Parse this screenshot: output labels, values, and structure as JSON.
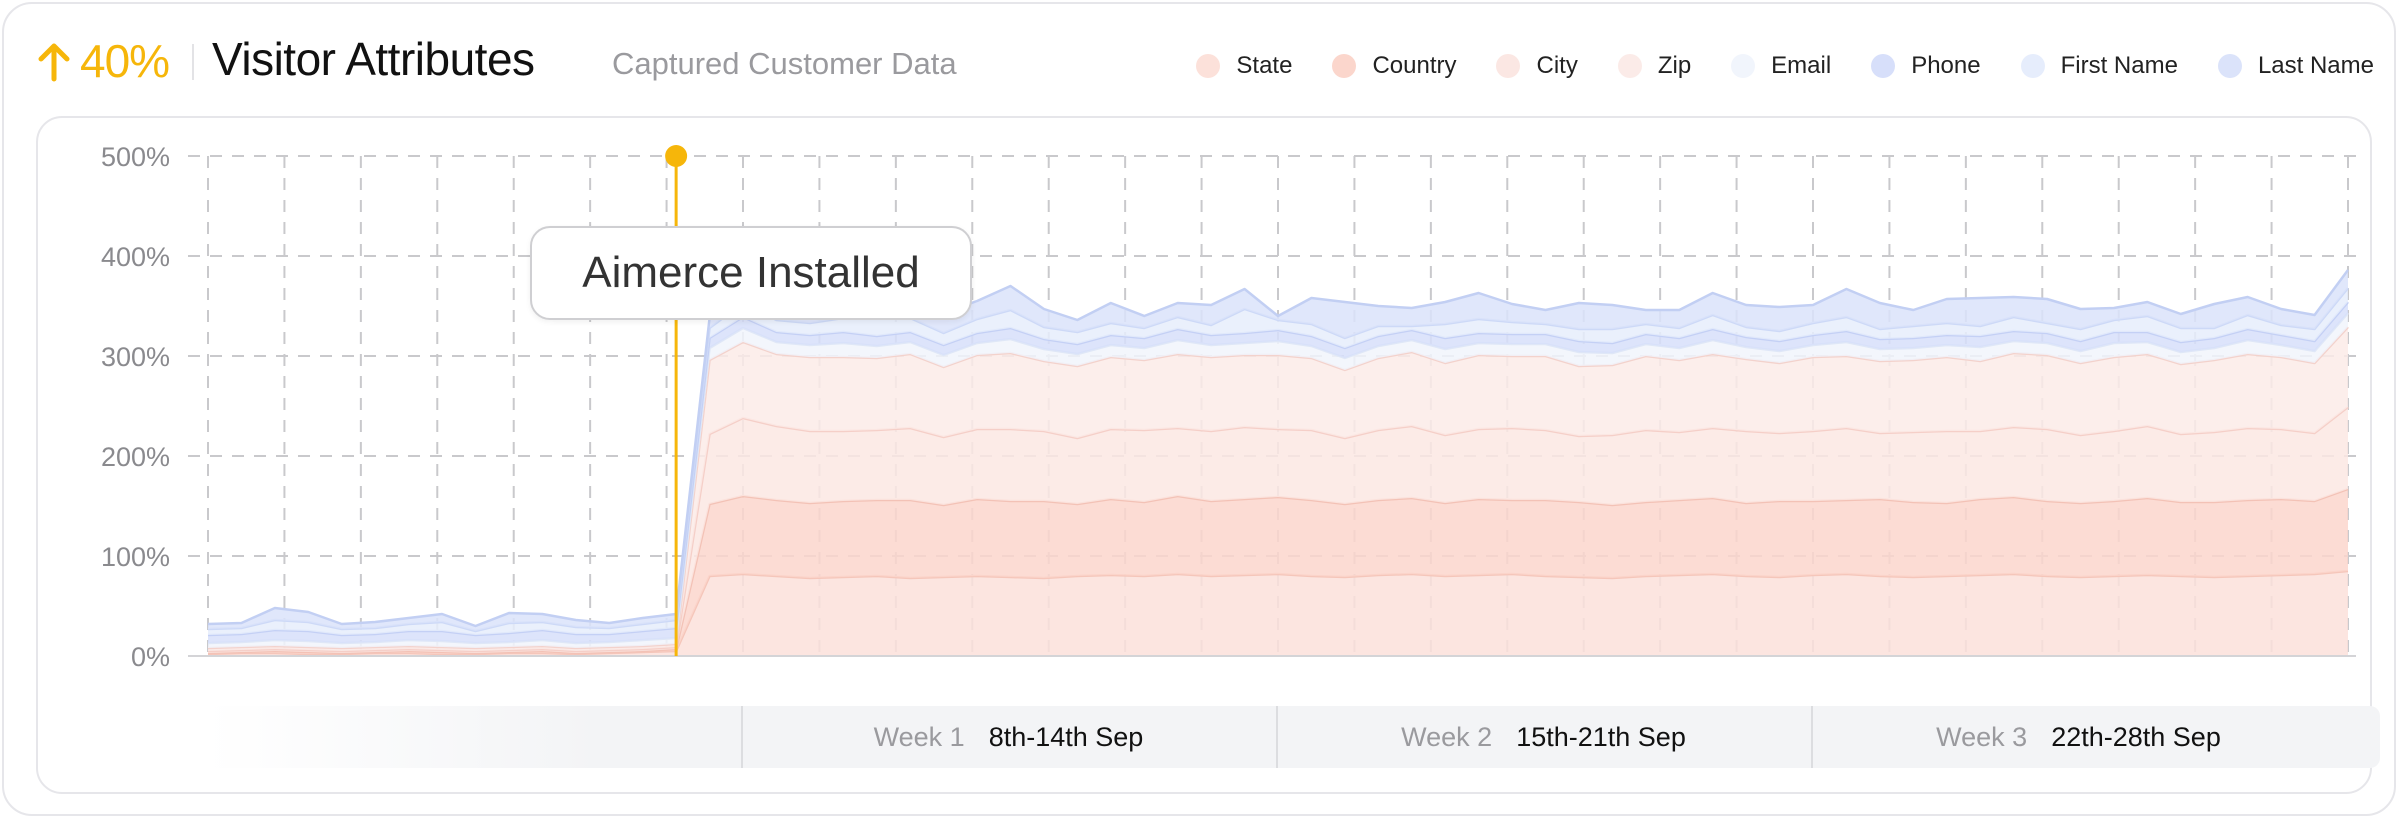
{
  "header": {
    "delta": "40%",
    "title": "Visitor Attributes",
    "subtitle": "Captured Customer Data"
  },
  "colors": {
    "accent": "#f6b60a",
    "state": "#fce1da",
    "country": "#fbd6cc",
    "city": "#fbe7e3",
    "zip": "#fbebe8",
    "email": "#f1f5fc",
    "phone": "#d7dffa",
    "first_name": "#e6edfc",
    "last_name": "#dbe3fa"
  },
  "legend": [
    {
      "label": "State",
      "color": "#fce1da"
    },
    {
      "label": "Country",
      "color": "#fbd6cc"
    },
    {
      "label": "City",
      "color": "#fbe7e3"
    },
    {
      "label": "Zip",
      "color": "#fbebe8"
    },
    {
      "label": "Email",
      "color": "#f1f5fc"
    },
    {
      "label": "Phone",
      "color": "#d7dffa"
    },
    {
      "label": "First Name",
      "color": "#e6edfc"
    },
    {
      "label": "Last Name",
      "color": "#dbe3fa"
    }
  ],
  "annotation": {
    "label": "Aimerce Installed"
  },
  "weeks": [
    {
      "num": "Week 1",
      "range": "8th-14th Sep"
    },
    {
      "num": "Week 2",
      "range": "15th-21th Sep"
    },
    {
      "num": "Week 3",
      "range": "22th-28th Sep"
    }
  ],
  "chart_data": {
    "type": "area",
    "stacked": true,
    "y_tick_labels": [
      "0%",
      "100%",
      "200%",
      "300%",
      "400%",
      "500%"
    ],
    "ylim": [
      0,
      500
    ],
    "x": [
      1,
      2,
      3,
      4,
      5,
      6,
      7,
      8,
      9,
      10,
      11,
      12,
      13,
      14,
      15,
      16,
      17,
      18,
      19,
      20,
      21,
      22,
      23,
      24,
      25,
      26,
      27,
      28,
      29,
      30,
      31,
      32,
      33,
      34,
      35,
      36,
      37,
      38,
      39,
      40,
      41,
      42,
      43,
      44,
      45,
      46,
      47,
      48,
      49,
      50,
      51,
      52,
      53,
      54,
      55,
      56,
      57,
      58,
      59,
      60,
      61,
      62,
      63,
      64,
      65
    ],
    "annotation_x": 15,
    "weeks_start_x": [
      15,
      29,
      43
    ],
    "grid": true,
    "legend_position": "top-right",
    "series": [
      {
        "name": "State",
        "values": [
          2,
          3,
          3,
          2,
          2,
          3,
          3,
          2,
          2,
          3,
          3,
          2,
          3,
          4,
          5,
          80,
          82,
          80,
          78,
          79,
          80,
          78,
          79,
          80,
          79,
          78,
          80,
          81,
          80,
          82,
          80,
          81,
          82,
          80,
          79,
          81,
          82,
          80,
          81,
          82,
          80,
          79,
          78,
          80,
          81,
          82,
          80,
          79,
          81,
          82,
          80,
          79,
          80,
          81,
          82,
          80,
          79,
          80,
          81,
          80,
          79,
          80,
          81,
          82,
          85
        ]
      },
      {
        "name": "Country",
        "values": [
          1,
          1,
          2,
          2,
          1,
          1,
          2,
          2,
          1,
          1,
          2,
          1,
          1,
          1,
          2,
          72,
          78,
          76,
          75,
          76,
          76,
          78,
          72,
          77,
          76,
          77,
          72,
          76,
          74,
          78,
          75,
          76,
          77,
          76,
          73,
          75,
          76,
          73,
          76,
          74,
          76,
          75,
          73,
          74,
          75,
          76,
          73,
          76,
          74,
          74,
          77,
          75,
          73,
          76,
          77,
          75,
          74,
          75,
          77,
          74,
          75,
          76,
          76,
          73,
          82
        ]
      },
      {
        "name": "City",
        "values": [
          2,
          2,
          2,
          2,
          2,
          2,
          2,
          2,
          2,
          2,
          2,
          2,
          2,
          2,
          2,
          70,
          78,
          74,
          72,
          70,
          70,
          72,
          68,
          70,
          72,
          70,
          66,
          70,
          72,
          68,
          70,
          72,
          68,
          70,
          66,
          70,
          72,
          68,
          70,
          72,
          70,
          66,
          70,
          72,
          68,
          70,
          72,
          68,
          70,
          72,
          66,
          70,
          72,
          68,
          70,
          72,
          68,
          70,
          72,
          68,
          70,
          72,
          70,
          68,
          82
        ]
      },
      {
        "name": "Zip",
        "values": [
          3,
          3,
          3,
          3,
          3,
          3,
          3,
          3,
          3,
          3,
          3,
          3,
          3,
          3,
          3,
          74,
          76,
          72,
          74,
          74,
          72,
          74,
          70,
          74,
          76,
          70,
          72,
          72,
          70,
          74,
          74,
          72,
          74,
          72,
          68,
          72,
          74,
          72,
          74,
          72,
          74,
          70,
          70,
          74,
          72,
          74,
          72,
          70,
          74,
          72,
          72,
          72,
          74,
          70,
          74,
          74,
          72,
          74,
          72,
          70,
          72,
          74,
          72,
          70,
          80
        ]
      },
      {
        "name": "Email",
        "values": [
          5,
          5,
          6,
          6,
          5,
          5,
          6,
          6,
          5,
          5,
          6,
          5,
          5,
          6,
          6,
          12,
          14,
          12,
          12,
          14,
          12,
          12,
          12,
          12,
          14,
          12,
          12,
          12,
          12,
          14,
          12,
          12,
          14,
          12,
          12,
          12,
          12,
          14,
          12,
          12,
          12,
          14,
          12,
          12,
          12,
          14,
          12,
          12,
          12,
          14,
          12,
          12,
          12,
          14,
          12,
          12,
          12,
          14,
          12,
          12,
          12,
          14,
          12,
          12,
          14
        ]
      },
      {
        "name": "Phone",
        "values": [
          8,
          8,
          10,
          10,
          8,
          8,
          9,
          10,
          8,
          9,
          10,
          9,
          8,
          9,
          10,
          10,
          11,
          10,
          10,
          11,
          10,
          10,
          10,
          10,
          11,
          10,
          10,
          10,
          10,
          11,
          10,
          10,
          11,
          10,
          10,
          10,
          10,
          11,
          10,
          10,
          10,
          11,
          10,
          10,
          10,
          11,
          10,
          10,
          10,
          11,
          10,
          10,
          10,
          11,
          10,
          10,
          10,
          11,
          10,
          10,
          10,
          11,
          10,
          10,
          11
        ]
      },
      {
        "name": "First Name",
        "values": [
          6,
          6,
          10,
          9,
          6,
          6,
          7,
          9,
          4,
          10,
          8,
          7,
          6,
          7,
          8,
          10,
          14,
          12,
          12,
          14,
          18,
          14,
          12,
          14,
          18,
          12,
          12,
          12,
          10,
          12,
          10,
          24,
          10,
          12,
          10,
          10,
          4,
          14,
          14,
          12,
          10,
          12,
          14,
          10,
          10,
          14,
          10,
          10,
          12,
          14,
          10,
          12,
          12,
          10,
          14,
          10,
          12,
          12,
          16,
          14,
          10,
          14,
          10,
          12,
          14
        ]
      },
      {
        "name": "Last Name",
        "values": [
          5,
          5,
          12,
          10,
          5,
          6,
          6,
          8,
          5,
          10,
          8,
          7,
          5,
          6,
          6,
          10,
          15,
          20,
          18,
          20,
          28,
          24,
          20,
          18,
          24,
          18,
          12,
          20,
          12,
          14,
          20,
          20,
          4,
          26,
          36,
          20,
          18,
          22,
          26,
          18,
          14,
          26,
          24,
          14,
          18,
          22,
          22,
          24,
          18,
          28,
          26,
          16,
          24,
          28,
          20,
          24,
          20,
          12,
          14,
          14,
          24,
          18,
          16,
          14,
          18
        ]
      }
    ]
  }
}
